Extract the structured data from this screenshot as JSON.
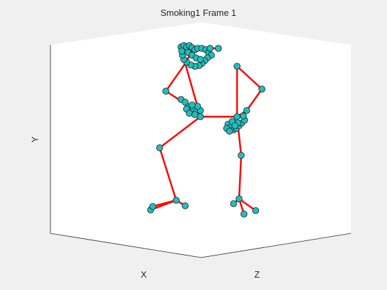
{
  "figure": {
    "title": "Smoking1 Frame 1",
    "axis_labels": {
      "x": "X",
      "y": "Y",
      "z": "Z"
    }
  },
  "colors": {
    "background": "#f0f0f0",
    "axes_face": "#ffffff",
    "axis_line": "#262626",
    "bone": "#ff0000",
    "joint_fill": "#1fbfbf",
    "joint_edge": "#1a1a1a"
  },
  "skeleton": {
    "projection": "3d-orthographic",
    "bones": [
      [
        "head",
        "neck"
      ],
      [
        "neck",
        "r_shoulder"
      ],
      [
        "neck",
        "l_shoulder"
      ],
      [
        "neck",
        "r_elbow"
      ],
      [
        "r_elbow",
        "r_hand"
      ],
      [
        "neck",
        "spine"
      ],
      [
        "r_shoulder",
        "r_hip_top"
      ],
      [
        "r_shoulder",
        "l_elbow"
      ],
      [
        "r_hip_top",
        "r_wrist"
      ],
      [
        "spine",
        "r_hip_top"
      ],
      [
        "spine",
        "l_hip"
      ],
      [
        "l_hip",
        "l_knee"
      ],
      [
        "l_knee",
        "l_ankle"
      ],
      [
        "l_ankle",
        "l_toe"
      ],
      [
        "l_ankle",
        "l_heel"
      ],
      [
        "r_hip_top",
        "r_knee"
      ],
      [
        "r_knee",
        "r_ankle"
      ],
      [
        "r_ankle",
        "r_toe"
      ],
      [
        "r_ankle",
        "r_heel"
      ]
    ]
  }
}
